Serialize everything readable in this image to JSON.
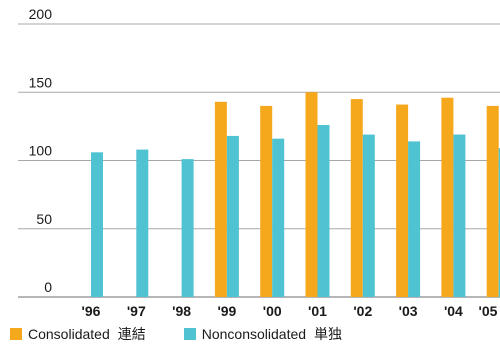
{
  "chart_data": {
    "type": "bar",
    "categories": [
      "'96",
      "'97",
      "'98",
      "'99",
      "'00",
      "'01",
      "'02",
      "'03",
      "'04",
      "'05"
    ],
    "series": [
      {
        "name": "Consolidated 連結",
        "color": "#f5a81c",
        "values": [
          null,
          null,
          null,
          143,
          140,
          150,
          145,
          141,
          146,
          140
        ]
      },
      {
        "name": "Nonconsolidated 単独",
        "color": "#4fc3d1",
        "values": [
          106,
          108,
          101,
          118,
          116,
          126,
          119,
          114,
          119,
          109
        ]
      }
    ],
    "yticks": [
      0,
      50,
      100,
      150,
      200
    ],
    "ylim": [
      0,
      200
    ],
    "grid": true,
    "legend_position": "bottom-left"
  },
  "legend": [
    {
      "label": "Consolidated",
      "label_jp": "連結",
      "color": "#f5a81c"
    },
    {
      "label": "Nonconsolidated",
      "label_jp": "単独",
      "color": "#4fc3d1"
    }
  ]
}
